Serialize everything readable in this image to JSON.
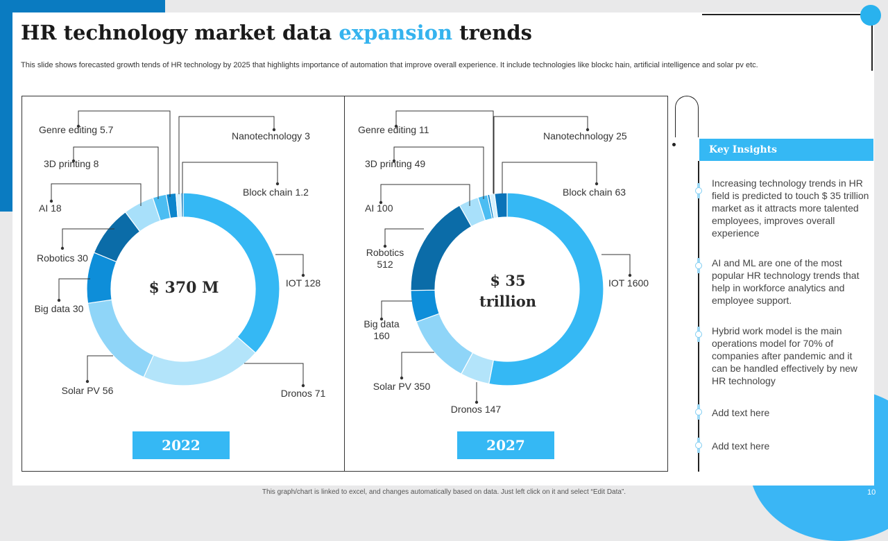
{
  "slide": {
    "title_prefix": "HR technology market data",
    "title_accent": "expansion",
    "title_suffix": "trends",
    "subtitle": "This slide shows forecasted growth tends of HR technology by 2025 that highlights importance of automation that improve overall experience. It include technologies like blockc hain, artificial intelligence and solar pv etc.",
    "footer_note": "This graph/chart is linked to excel, and changes automatically based on data. Just left click on it and select “Edit Data”.",
    "page_number": "10"
  },
  "colors": {
    "accent": "#35b3ee",
    "badge": "#35b8f4",
    "dark_blue": "#0a7bc1"
  },
  "chart_data": [
    {
      "type": "pie",
      "variant": "donut",
      "year": "2022",
      "center_line1": "$ 370 M",
      "center_line2": "",
      "segments": [
        {
          "name": "IOT",
          "value": 128,
          "label_line1": "IOT 128",
          "label_line2": "",
          "color": "#35b8f4"
        },
        {
          "name": "Dronos",
          "value": 71,
          "label_line1": "Dronos 71",
          "label_line2": "",
          "color": "#b3e4fa"
        },
        {
          "name": "Solar PV",
          "value": 56,
          "label_line1": "Solar PV 56",
          "label_line2": "",
          "color": "#8fd5f8"
        },
        {
          "name": "Big data",
          "value": 30,
          "label_line1": "Big data 30",
          "label_line2": "",
          "color": "#0e8ed9"
        },
        {
          "name": "Robotics",
          "value": 30,
          "label_line1": "Robotics 30",
          "label_line2": "",
          "color": "#0b6ca8"
        },
        {
          "name": "AI",
          "value": 18,
          "label_line1": "AI 18",
          "label_line2": "",
          "color": "#a8e0fa"
        },
        {
          "name": "3D printing",
          "value": 8,
          "label_line1": "3D printing 8",
          "label_line2": "",
          "color": "#4cbdf2"
        },
        {
          "name": "Genre editing",
          "value": 5.7,
          "label_line1": "Genre editing 5.7",
          "label_line2": "",
          "color": "#0c85cc"
        },
        {
          "name": "Nanotechnology",
          "value": 3,
          "label_line1": "Nanotechnology 3",
          "label_line2": "",
          "color": "#d6f1fd"
        },
        {
          "name": "Block chain",
          "value": 1.2,
          "label_line1": "Block chain 1.2",
          "label_line2": "",
          "color": "#0a73b8"
        }
      ]
    },
    {
      "type": "pie",
      "variant": "donut",
      "year": "2027",
      "center_line1": "$ 35",
      "center_line2": "trillion",
      "segments": [
        {
          "name": "IOT",
          "value": 1600,
          "label_line1": "IOT 1600",
          "label_line2": "",
          "color": "#35b8f4"
        },
        {
          "name": "Dronos",
          "value": 147,
          "label_line1": "Dronos 147",
          "label_line2": "",
          "color": "#b3e4fa"
        },
        {
          "name": "Solar PV",
          "value": 350,
          "label_line1": "Solar PV 350",
          "label_line2": "",
          "color": "#8fd5f8"
        },
        {
          "name": "Big data",
          "value": 160,
          "label_line1": "Big data",
          "label_line2": "160",
          "color": "#0e8ed9"
        },
        {
          "name": "Robotics",
          "value": 512,
          "label_line1": "Robotics",
          "label_line2": "512",
          "color": "#0b6ca8"
        },
        {
          "name": "AI",
          "value": 100,
          "label_line1": "AI 100",
          "label_line2": "",
          "color": "#a8e0fa"
        },
        {
          "name": "3D printing",
          "value": 49,
          "label_line1": "3D printing 49",
          "label_line2": "",
          "color": "#4cbdf2"
        },
        {
          "name": "Genre editing",
          "value": 11,
          "label_line1": "Genre editing 11",
          "label_line2": "",
          "color": "#0c85cc"
        },
        {
          "name": "Nanotechnology",
          "value": 25,
          "label_line1": "Nanotechnology 25",
          "label_line2": "",
          "color": "#d6f1fd"
        },
        {
          "name": "Block chain",
          "value": 63,
          "label_line1": "Block chain 63",
          "label_line2": "",
          "color": "#0a73b8"
        }
      ]
    }
  ],
  "insights": {
    "title": "Key Insights",
    "items": [
      "Increasing technology trends in HR field is predicted to touch $ 35 trillion market as it attracts more talented employees, improves overall experience",
      "AI and ML are one of the most popular HR technology trends that help in workforce analytics and employee support.",
      "Hybrid work model is the main operations model for 70% of companies after pandemic and it can be handled effectively by new HR technology",
      "Add text here",
      "Add text here"
    ]
  }
}
